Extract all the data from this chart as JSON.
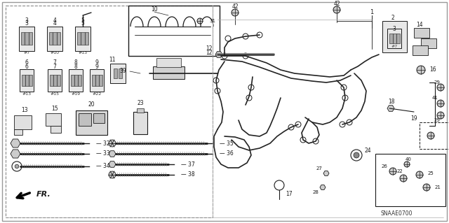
{
  "bg_color": "#ffffff",
  "line_color": "#1a1a1a",
  "gray_color": "#888888",
  "figsize": [
    6.4,
    3.19
  ],
  "dpi": 100,
  "part_code": "SNAAE0700"
}
